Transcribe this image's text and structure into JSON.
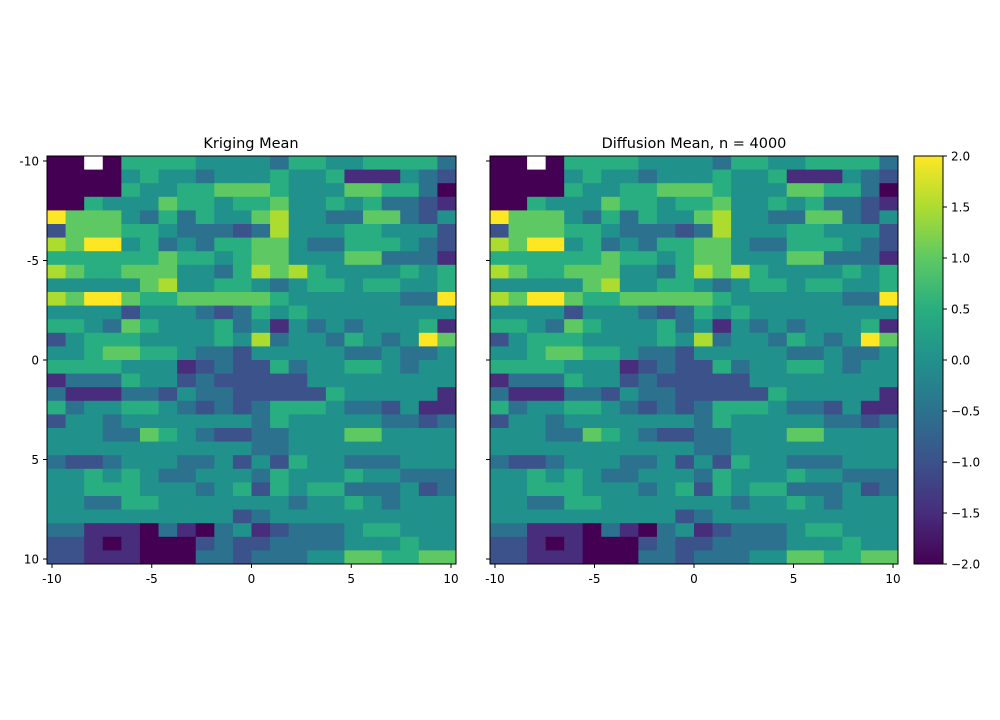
{
  "chart_data": [
    {
      "type": "heatmap",
      "title": "Kriging Mean",
      "x_ticks": [
        "-10",
        "-5",
        "0",
        "5",
        "10"
      ],
      "y_ticks": [
        "-10",
        "-5",
        "0",
        "5",
        "10"
      ],
      "x_range": [
        -10.25,
        10.25
      ],
      "y_range": [
        -10.25,
        10.25
      ],
      "grid": false,
      "cells": [
        "1101666655554665566664",
        "1111565545556556222543",
        "1111655667776555776641",
        "1165557665667556564432",
        "9777546465578554477435",
        "3777665444348555665553",
        "8799564546677544666543",
        "6666667665677555774442",
        "8766777554687865555656",
        "5555578556654566566556",
        "8799766777776555555449",
        "5555355543465655555555",
        "6654765556452545455562",
        "3566655556584554654597",
        "5567766544355555445445",
        "6666555234336455665455",
        "2444655343333355555555",
        "4222443544333336555552",
        "6455665434346665443522",
        "3554555555546555554434",
        "5554476543344555775555",
        "5555555555544555555555",
        "4334555445353655444555",
        "5565654455546555655444",
        "5566655545636566444534",
        "5544665555555455654555",
        "5555555555345555555555",
        "4422214214523444566555",
        "3321211134334444555655",
        "3322211144344455776677"
      ]
    },
    {
      "type": "heatmap",
      "title": "Diffusion Mean, n = 4000",
      "x_ticks": [
        "-10",
        "-5",
        "0",
        "5",
        "10"
      ],
      "y_ticks": [],
      "x_range": [
        -10.25,
        10.25
      ],
      "y_range": [
        -10.25,
        10.25
      ],
      "grid": false,
      "cells": [
        "1101666655554665566664",
        "1111565545556556222543",
        "1111655667776555776641",
        "1165557665667556564432",
        "9777546465578554477435",
        "3777665444348555665553",
        "8799564546677544666543",
        "6666667665677555774442",
        "8766777554687865555656",
        "5555578556654566566556",
        "8799766777776555555449",
        "5555355543465655555555",
        "6654765556452545455562",
        "3566655556584554654597",
        "5567766544355555445445",
        "6666555234336455665455",
        "2444655343333355555555",
        "4222443544333336555552",
        "6455665434346665443522",
        "3554555555546555554434",
        "5554476543344555775555",
        "5555555555544555555555",
        "4334555445353655444555",
        "5565654455546555655444",
        "5566655545636566444534",
        "5544665555555455654555",
        "5555555555345555555555",
        "4422214214523444566555",
        "3321211134334444555655",
        "3322211144344455776677"
      ]
    }
  ],
  "colorbar": {
    "colormap": "viridis",
    "range": [
      -2.0,
      2.0
    ],
    "ticks": [
      "2.0",
      "1.5",
      "1.0",
      "0.5",
      "0.0",
      "−0.5",
      "−1.0",
      "−1.5",
      "−2.0"
    ]
  }
}
